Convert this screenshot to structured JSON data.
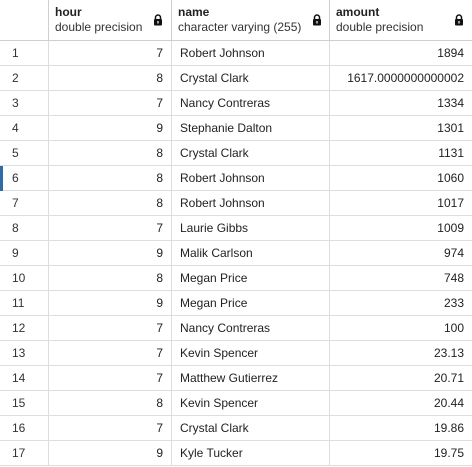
{
  "columns": [
    {
      "name": "hour",
      "type": "double precision"
    },
    {
      "name": "name",
      "type": "character varying (255)"
    },
    {
      "name": "amount",
      "type": "double precision"
    }
  ],
  "rows": [
    {
      "idx": "1",
      "hour": "7",
      "name": "Robert Johnson",
      "amount": "1894"
    },
    {
      "idx": "2",
      "hour": "8",
      "name": "Crystal Clark",
      "amount": "1617.0000000000002"
    },
    {
      "idx": "3",
      "hour": "7",
      "name": "Nancy Contreras",
      "amount": "1334"
    },
    {
      "idx": "4",
      "hour": "9",
      "name": "Stephanie Dalton",
      "amount": "1301"
    },
    {
      "idx": "5",
      "hour": "8",
      "name": "Crystal Clark",
      "amount": "1131"
    },
    {
      "idx": "6",
      "hour": "8",
      "name": "Robert Johnson",
      "amount": "1060"
    },
    {
      "idx": "7",
      "hour": "8",
      "name": "Robert Johnson",
      "amount": "1017"
    },
    {
      "idx": "8",
      "hour": "7",
      "name": "Laurie Gibbs",
      "amount": "1009"
    },
    {
      "idx": "9",
      "hour": "9",
      "name": "Malik Carlson",
      "amount": "974"
    },
    {
      "idx": "10",
      "hour": "8",
      "name": "Megan Price",
      "amount": "748"
    },
    {
      "idx": "11",
      "hour": "9",
      "name": "Megan Price",
      "amount": "233"
    },
    {
      "idx": "12",
      "hour": "7",
      "name": "Nancy Contreras",
      "amount": "100"
    },
    {
      "idx": "13",
      "hour": "7",
      "name": "Kevin Spencer",
      "amount": "23.13"
    },
    {
      "idx": "14",
      "hour": "7",
      "name": "Matthew Gutierrez",
      "amount": "20.71"
    },
    {
      "idx": "15",
      "hour": "8",
      "name": "Kevin Spencer",
      "amount": "20.44"
    },
    {
      "idx": "16",
      "hour": "7",
      "name": "Crystal Clark",
      "amount": "19.86"
    },
    {
      "idx": "17",
      "hour": "9",
      "name": "Kyle Tucker",
      "amount": "19.75"
    }
  ],
  "selected_row": 5,
  "icons": {
    "column_header": "lock-icon"
  },
  "colors": {
    "selection_marker": "#2f6ca3",
    "grid_line": "#dddddd"
  }
}
